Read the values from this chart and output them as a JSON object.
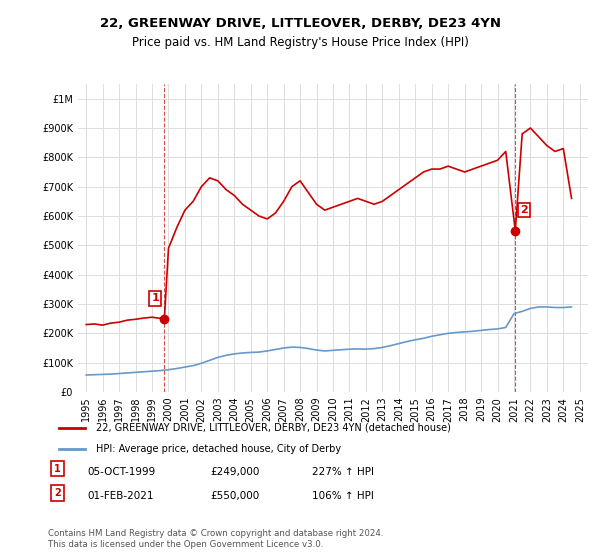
{
  "title": "22, GREENWAY DRIVE, LITTLEOVER, DERBY, DE23 4YN",
  "subtitle": "Price paid vs. HM Land Registry's House Price Index (HPI)",
  "property_label": "22, GREENWAY DRIVE, LITTLEOVER, DERBY, DE23 4YN (detached house)",
  "hpi_label": "HPI: Average price, detached house, City of Derby",
  "sale1_date": "05-OCT-1999",
  "sale1_price": 249000,
  "sale1_hpi": "227% ↑ HPI",
  "sale2_date": "01-FEB-2021",
  "sale2_price": 550000,
  "sale2_hpi": "106% ↑ HPI",
  "footer": "Contains HM Land Registry data © Crown copyright and database right 2024.\nThis data is licensed under the Open Government Licence v3.0.",
  "property_color": "#cc0000",
  "hpi_color": "#6699cc",
  "ylim": [
    0,
    1050000
  ],
  "xlim_start": 1994.5,
  "xlim_end": 2025.5,
  "property_hpi_x": [
    1995.0,
    1995.5,
    1996.0,
    1996.5,
    1997.0,
    1997.5,
    1998.0,
    1998.5,
    1999.0,
    1999.75,
    2000.0,
    2000.5,
    2001.0,
    2001.5,
    2002.0,
    2002.5,
    2003.0,
    2003.5,
    2004.0,
    2004.5,
    2005.0,
    2005.5,
    2006.0,
    2006.5,
    2007.0,
    2007.5,
    2008.0,
    2008.5,
    2009.0,
    2009.5,
    2010.0,
    2010.5,
    2011.0,
    2011.5,
    2012.0,
    2012.5,
    2013.0,
    2013.5,
    2014.0,
    2014.5,
    2015.0,
    2015.5,
    2016.0,
    2016.5,
    2017.0,
    2017.5,
    2018.0,
    2018.5,
    2019.0,
    2019.5,
    2020.0,
    2020.5,
    2021.08,
    2021.5,
    2022.0,
    2022.5,
    2023.0,
    2023.5,
    2024.0,
    2024.5
  ],
  "property_hpi_y": [
    230000,
    232000,
    228000,
    235000,
    238000,
    245000,
    248000,
    252000,
    255000,
    249000,
    490000,
    560000,
    620000,
    650000,
    700000,
    730000,
    720000,
    690000,
    670000,
    640000,
    620000,
    600000,
    590000,
    610000,
    650000,
    700000,
    720000,
    680000,
    640000,
    620000,
    630000,
    640000,
    650000,
    660000,
    650000,
    640000,
    650000,
    670000,
    690000,
    710000,
    730000,
    750000,
    760000,
    760000,
    770000,
    760000,
    750000,
    760000,
    770000,
    780000,
    790000,
    820000,
    550000,
    880000,
    900000,
    870000,
    840000,
    820000,
    830000,
    660000
  ],
  "hpi_x": [
    1995.0,
    1995.5,
    1996.0,
    1996.5,
    1997.0,
    1997.5,
    1998.0,
    1998.5,
    1999.0,
    1999.5,
    2000.0,
    2000.5,
    2001.0,
    2001.5,
    2002.0,
    2002.5,
    2003.0,
    2003.5,
    2004.0,
    2004.5,
    2005.0,
    2005.5,
    2006.0,
    2006.5,
    2007.0,
    2007.5,
    2008.0,
    2008.5,
    2009.0,
    2009.5,
    2010.0,
    2010.5,
    2011.0,
    2011.5,
    2012.0,
    2012.5,
    2013.0,
    2013.5,
    2014.0,
    2014.5,
    2015.0,
    2015.5,
    2016.0,
    2016.5,
    2017.0,
    2017.5,
    2018.0,
    2018.5,
    2019.0,
    2019.5,
    2020.0,
    2020.5,
    2021.0,
    2021.5,
    2022.0,
    2022.5,
    2023.0,
    2023.5,
    2024.0,
    2024.5
  ],
  "hpi_y": [
    58000,
    59000,
    60000,
    61000,
    63000,
    65000,
    67000,
    69000,
    71000,
    73000,
    76000,
    80000,
    85000,
    90000,
    98000,
    108000,
    118000,
    125000,
    130000,
    133000,
    135000,
    136000,
    140000,
    145000,
    150000,
    153000,
    152000,
    148000,
    143000,
    140000,
    142000,
    144000,
    146000,
    147000,
    146000,
    148000,
    152000,
    158000,
    165000,
    172000,
    178000,
    183000,
    190000,
    195000,
    200000,
    203000,
    205000,
    207000,
    210000,
    213000,
    215000,
    220000,
    267000,
    275000,
    285000,
    290000,
    290000,
    288000,
    288000,
    290000
  ]
}
